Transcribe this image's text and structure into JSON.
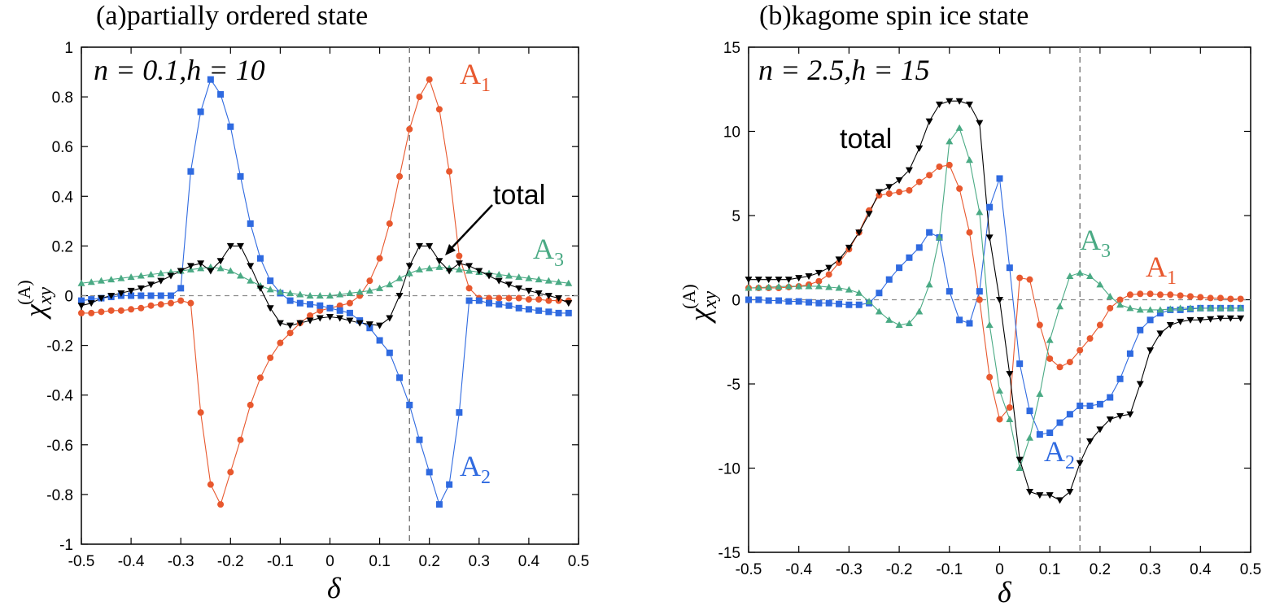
{
  "chart_data": [
    {
      "type": "line",
      "title": "(a)partially ordered state",
      "params": "n = 0.1,h = 10",
      "xlabel": "δ",
      "ylabel": "χxy(A)",
      "xlim": [
        -0.5,
        0.5
      ],
      "ylim": [
        -1,
        1
      ],
      "xticks": [
        -0.5,
        -0.4,
        -0.3,
        -0.2,
        -0.1,
        0,
        0.1,
        0.2,
        0.3,
        0.4,
        0.5
      ],
      "yticks": [
        -1,
        -0.8,
        -0.6,
        -0.4,
        -0.2,
        0,
        0.2,
        0.4,
        0.6,
        0.8,
        1
      ],
      "xtick_labels": [
        "-0.5",
        "-0.4",
        "-0.3",
        "-0.2",
        "-0.1",
        "0",
        "0.1",
        "0.2",
        "0.3",
        "0.4",
        "0.5"
      ],
      "ytick_labels": [
        "-1",
        "-0.8",
        "-0.6",
        "-0.4",
        "-0.2",
        "0",
        "0.2",
        "0.4",
        "0.6",
        "0.8",
        "1"
      ],
      "vline": 0.16,
      "x": [
        -0.5,
        -0.48,
        -0.46,
        -0.44,
        -0.42,
        -0.4,
        -0.38,
        -0.36,
        -0.34,
        -0.32,
        -0.3,
        -0.28,
        -0.26,
        -0.24,
        -0.22,
        -0.2,
        -0.18,
        -0.16,
        -0.14,
        -0.12,
        -0.1,
        -0.08,
        -0.06,
        -0.04,
        -0.02,
        0,
        0.02,
        0.04,
        0.06,
        0.08,
        0.1,
        0.12,
        0.14,
        0.16,
        0.18,
        0.2,
        0.22,
        0.24,
        0.26,
        0.28,
        0.3,
        0.32,
        0.34,
        0.36,
        0.38,
        0.4,
        0.42,
        0.44,
        0.46,
        0.48
      ],
      "series": [
        {
          "name": "A1",
          "color": "#e8582e",
          "marker": "circle",
          "values": [
            -0.07,
            -0.07,
            -0.065,
            -0.06,
            -0.06,
            -0.055,
            -0.05,
            -0.04,
            -0.035,
            -0.03,
            -0.02,
            -0.03,
            -0.47,
            -0.76,
            -0.84,
            -0.71,
            -0.58,
            -0.44,
            -0.33,
            -0.25,
            -0.19,
            -0.15,
            -0.11,
            -0.08,
            -0.06,
            -0.05,
            -0.04,
            -0.03,
            0.0,
            0.06,
            0.15,
            0.29,
            0.48,
            0.67,
            0.8,
            0.87,
            0.75,
            0.5,
            0.16,
            0.03,
            -0.01,
            -0.01,
            -0.01,
            -0.01,
            -0.01,
            -0.015,
            -0.015,
            -0.02,
            -0.02,
            -0.02
          ]
        },
        {
          "name": "A2",
          "color": "#2f6ae0",
          "marker": "square",
          "values": [
            -0.02,
            -0.015,
            -0.01,
            -0.005,
            0.0,
            0.0,
            0.0,
            0.0,
            0.0,
            0.0,
            0.03,
            0.5,
            0.74,
            0.87,
            0.81,
            0.68,
            0.48,
            0.29,
            0.15,
            0.06,
            0.01,
            -0.02,
            -0.03,
            -0.035,
            -0.04,
            -0.05,
            -0.06,
            -0.07,
            -0.1,
            -0.13,
            -0.18,
            -0.23,
            -0.33,
            -0.44,
            -0.58,
            -0.71,
            -0.84,
            -0.76,
            -0.47,
            -0.02,
            -0.02,
            -0.03,
            -0.035,
            -0.04,
            -0.05,
            -0.055,
            -0.06,
            -0.065,
            -0.07,
            -0.07
          ]
        },
        {
          "name": "A3",
          "color": "#4aaa84",
          "marker": "triangle-up",
          "values": [
            0.05,
            0.055,
            0.06,
            0.065,
            0.07,
            0.075,
            0.08,
            0.085,
            0.09,
            0.095,
            0.1,
            0.105,
            0.11,
            0.115,
            0.11,
            0.1,
            0.08,
            0.06,
            0.04,
            0.025,
            0.015,
            0.01,
            0.005,
            0.0,
            0.0,
            0.0,
            0.005,
            0.01,
            0.015,
            0.02,
            0.03,
            0.045,
            0.07,
            0.09,
            0.105,
            0.11,
            0.115,
            0.11,
            0.105,
            0.1,
            0.095,
            0.09,
            0.085,
            0.08,
            0.075,
            0.07,
            0.065,
            0.06,
            0.055,
            0.05
          ]
        },
        {
          "name": "total",
          "color": "#000000",
          "marker": "triangle-down",
          "values": [
            -0.04,
            -0.03,
            -0.01,
            0.0,
            0.01,
            0.02,
            0.03,
            0.045,
            0.06,
            0.08,
            0.1,
            0.12,
            0.13,
            0.1,
            0.14,
            0.2,
            0.2,
            0.12,
            0.03,
            -0.05,
            -0.11,
            -0.12,
            -0.11,
            -0.1,
            -0.09,
            -0.085,
            -0.09,
            -0.1,
            -0.11,
            -0.115,
            -0.12,
            -0.09,
            0.0,
            0.12,
            0.2,
            0.2,
            0.14,
            0.1,
            0.13,
            0.12,
            0.1,
            0.08,
            0.06,
            0.045,
            0.03,
            0.02,
            0.01,
            0.0,
            -0.01,
            -0.03
          ]
        }
      ],
      "annotations": {
        "A1": "A1",
        "A2": "A2",
        "A3": "A3",
        "total": "total"
      }
    },
    {
      "type": "line",
      "title": "(b)kagome spin ice state",
      "params": "n = 2.5,h = 15",
      "xlabel": "δ",
      "ylabel": "χxy(A)",
      "xlim": [
        -0.5,
        0.5
      ],
      "ylim": [
        -15,
        15
      ],
      "xticks": [
        -0.5,
        -0.4,
        -0.3,
        -0.2,
        -0.1,
        0,
        0.1,
        0.2,
        0.3,
        0.4,
        0.5
      ],
      "yticks": [
        -15,
        -10,
        -5,
        0,
        5,
        10,
        15
      ],
      "xtick_labels": [
        "-0.5",
        "-0.4",
        "-0.3",
        "-0.2",
        "-0.1",
        "0",
        "0.1",
        "0.2",
        "0.3",
        "0.4",
        "0.5"
      ],
      "ytick_labels": [
        "-15",
        "-10",
        "-5",
        "0",
        "5",
        "10",
        "15"
      ],
      "vline": 0.16,
      "x": [
        -0.5,
        -0.48,
        -0.46,
        -0.44,
        -0.42,
        -0.4,
        -0.38,
        -0.36,
        -0.34,
        -0.32,
        -0.3,
        -0.28,
        -0.26,
        -0.24,
        -0.22,
        -0.2,
        -0.18,
        -0.16,
        -0.14,
        -0.12,
        -0.1,
        -0.08,
        -0.06,
        -0.04,
        -0.02,
        0,
        0.02,
        0.04,
        0.06,
        0.08,
        0.1,
        0.12,
        0.14,
        0.16,
        0.18,
        0.2,
        0.22,
        0.24,
        0.26,
        0.28,
        0.3,
        0.32,
        0.34,
        0.36,
        0.38,
        0.4,
        0.42,
        0.44,
        0.46,
        0.48
      ],
      "series": [
        {
          "name": "A1",
          "color": "#e8582e",
          "marker": "circle",
          "values": [
            0.7,
            0.7,
            0.7,
            0.7,
            0.75,
            0.8,
            0.9,
            1.1,
            1.5,
            2.2,
            3.0,
            4.0,
            5.3,
            6.2,
            6.3,
            6.4,
            6.5,
            7.0,
            7.4,
            7.9,
            8.0,
            6.6,
            4.0,
            0.0,
            -4.6,
            -7.1,
            -6.4,
            1.3,
            1.2,
            -1.5,
            -3.5,
            -4.0,
            -3.7,
            -3.0,
            -2.3,
            -1.5,
            -0.5,
            0.0,
            0.3,
            0.35,
            0.35,
            0.3,
            0.3,
            0.25,
            0.2,
            0.15,
            0.1,
            0.1,
            0.05,
            0.05
          ]
        },
        {
          "name": "A2",
          "color": "#2f6ae0",
          "marker": "square",
          "values": [
            0.0,
            0.0,
            -0.05,
            -0.05,
            -0.1,
            -0.1,
            -0.15,
            -0.2,
            -0.2,
            -0.25,
            -0.3,
            -0.3,
            -0.2,
            0.4,
            1.2,
            1.9,
            2.5,
            3.1,
            4.0,
            3.7,
            0.5,
            -1.2,
            -1.4,
            0.5,
            5.5,
            7.2,
            1.9,
            -3.8,
            -6.6,
            -8.0,
            -7.9,
            -7.3,
            -6.8,
            -6.3,
            -6.3,
            -6.2,
            -5.8,
            -4.7,
            -3.2,
            -1.8,
            -1.2,
            -0.8,
            -0.6,
            -0.6,
            -0.55,
            -0.5,
            -0.5,
            -0.5,
            -0.5,
            -0.5
          ]
        },
        {
          "name": "A3",
          "color": "#4aaa84",
          "marker": "triangle-up",
          "values": [
            0.7,
            0.72,
            0.75,
            0.78,
            0.8,
            0.8,
            0.8,
            0.8,
            0.75,
            0.7,
            0.6,
            0.4,
            -0.1,
            -0.7,
            -1.2,
            -1.5,
            -1.4,
            -0.7,
            0.9,
            3.7,
            9.4,
            10.2,
            8.3,
            5.2,
            -1.5,
            -5.4,
            -7.1,
            -10.0,
            -8.2,
            -5.6,
            -2.4,
            -0.4,
            1.4,
            1.6,
            1.4,
            0.9,
            0.2,
            -0.3,
            -0.5,
            -0.6,
            -0.6,
            -0.6,
            -0.55,
            -0.5,
            -0.5,
            -0.5,
            -0.5,
            -0.5,
            -0.5,
            -0.5
          ]
        },
        {
          "name": "total",
          "color": "#000000",
          "marker": "triangle-down",
          "values": [
            1.2,
            1.2,
            1.2,
            1.2,
            1.2,
            1.3,
            1.4,
            1.6,
            1.9,
            2.4,
            3.1,
            4.0,
            5.1,
            6.4,
            6.7,
            7.1,
            7.7,
            9.0,
            10.6,
            11.6,
            11.8,
            11.8,
            11.6,
            10.5,
            3.7,
            0.0,
            -4.4,
            -9.5,
            -11.4,
            -11.6,
            -11.6,
            -11.9,
            -11.4,
            -9.7,
            -8.4,
            -7.7,
            -7.1,
            -6.9,
            -6.8,
            -5.0,
            -3.0,
            -2.0,
            -1.5,
            -1.3,
            -1.2,
            -1.2,
            -1.15,
            -1.1,
            -1.1,
            -1.1
          ]
        }
      ],
      "annotations": {
        "A1": "A1",
        "A2": "A2",
        "A3": "A3",
        "total": "total"
      }
    }
  ]
}
